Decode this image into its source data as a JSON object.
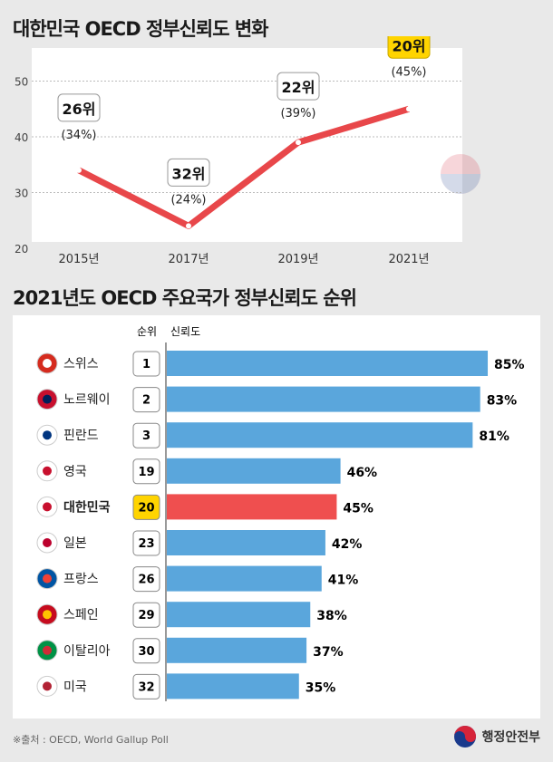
{
  "titles": {
    "line": "대한민국 OECD 정부신뢰도 변화",
    "bar": "2021년도 OECD 주요국가 정부신뢰도 순위"
  },
  "chart_data": [
    {
      "type": "line",
      "title": "대한민국 OECD 정부신뢰도 변화",
      "categories": [
        "2015년",
        "2017년",
        "2019년",
        "2021년"
      ],
      "values": [
        34,
        24,
        39,
        45
      ],
      "ranks": [
        "26위",
        "32위",
        "22위",
        "20위"
      ],
      "value_labels": [
        "(34%)",
        "(24%)",
        "(39%)",
        "(45%)"
      ],
      "ylim": [
        20,
        55
      ],
      "yticks": [
        20,
        30,
        40,
        50
      ],
      "grid": true,
      "line_color": "#e8474a",
      "highlight_color": "#ffd400"
    },
    {
      "type": "bar",
      "orientation": "horizontal",
      "title": "2021년도 OECD 주요국가 정부신뢰도 순위",
      "column_headers": {
        "rank": "순위",
        "value": "신뢰도"
      },
      "categories": [
        "스위스",
        "노르웨이",
        "핀란드",
        "영국",
        "대한민국",
        "일본",
        "프랑스",
        "스페인",
        "이탈리아",
        "미국"
      ],
      "ranks": [
        "1",
        "2",
        "3",
        "19",
        "20",
        "23",
        "26",
        "29",
        "30",
        "32"
      ],
      "values": [
        85,
        83,
        81,
        46,
        45,
        42,
        41,
        38,
        37,
        35
      ],
      "flags": [
        "switzerland-flag",
        "norway-flag",
        "finland-flag",
        "uk-flag",
        "korea-flag",
        "japan-flag",
        "france-flag",
        "spain-flag",
        "italy-flag",
        "usa-flag"
      ],
      "highlight": "대한민국",
      "bar_color": "#5aa6dc",
      "highlight_bar_color": "#ef4f4f",
      "highlight_rank_color": "#ffd400"
    }
  ],
  "footer": {
    "source": "※출처 : OECD, World Gallup Poll",
    "logo_text": "행정안전부"
  }
}
